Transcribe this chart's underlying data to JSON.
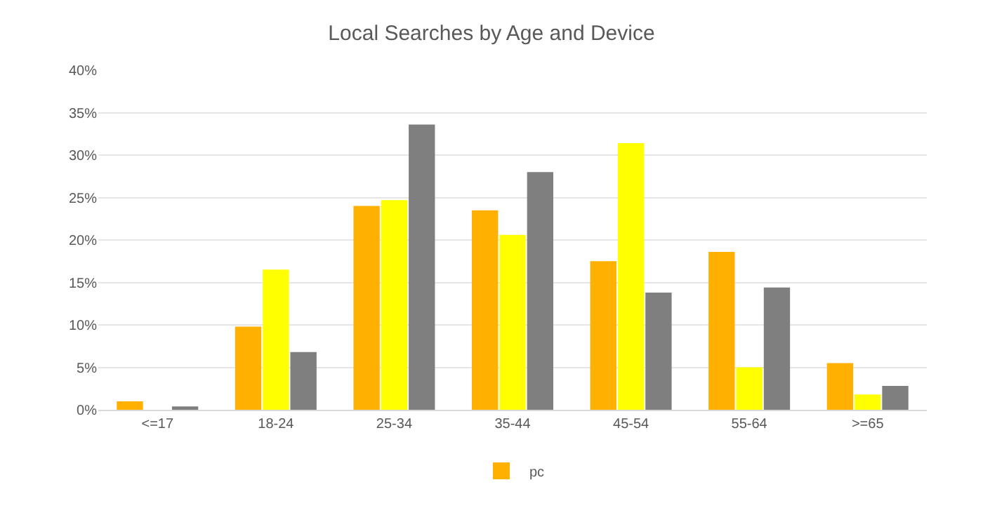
{
  "chart_data": {
    "type": "bar",
    "title": "Local Searches by Age and Device",
    "categories": [
      "<=17",
      "18-24",
      "25-34",
      "35-44",
      "45-54",
      "55-64",
      ">=65"
    ],
    "series": [
      {
        "name": "pc",
        "color": "#ffb000",
        "values": [
          1,
          9.8,
          24,
          23.5,
          17.5,
          18.6,
          5.5
        ]
      },
      {
        "color": "#ffff00",
        "values": [
          0,
          16.5,
          24.7,
          20.6,
          31.4,
          5,
          1.8
        ]
      },
      {
        "color": "#7f7f7f",
        "values": [
          0.4,
          6.8,
          33.6,
          28,
          13.8,
          14.4,
          2.8
        ]
      }
    ],
    "ylim": [
      0,
      40
    ],
    "yticks": [
      {
        "value": 0,
        "label": "0%"
      },
      {
        "value": 5,
        "label": "5%"
      },
      {
        "value": 10,
        "label": "10%"
      },
      {
        "value": 15,
        "label": "15%"
      },
      {
        "value": 20,
        "label": "20%"
      },
      {
        "value": 25,
        "label": "25%"
      },
      {
        "value": 30,
        "label": "30%"
      },
      {
        "value": 35,
        "label": "35%"
      },
      {
        "value": 40,
        "label": "40%"
      }
    ],
    "grid": "y",
    "legend": "bottom"
  }
}
